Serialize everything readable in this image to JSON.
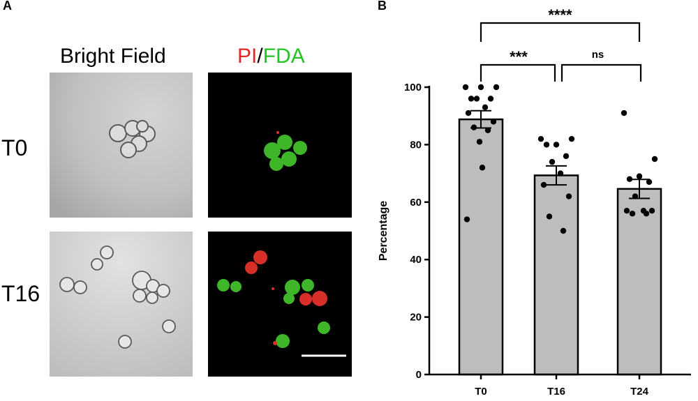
{
  "panel_a": {
    "letter": "A",
    "columns": {
      "bright_field": "Bright Field",
      "pi": "PI",
      "slash": "/",
      "fda": "FDA"
    },
    "rows": [
      "T0",
      "T16"
    ],
    "colors": {
      "pi": "#e8232a",
      "fda": "#22c322",
      "fluor_bg": "#000000"
    }
  },
  "panel_b": {
    "letter": "B"
  },
  "chart_data": {
    "type": "bar",
    "categories": [
      "T0",
      "T16",
      "T24"
    ],
    "values": [
      88.8,
      69.3,
      64.6
    ],
    "sem": [
      3.0,
      3.3,
      3.3
    ],
    "points": [
      [
        100,
        100,
        100,
        96,
        96,
        96,
        93,
        91,
        88,
        86,
        85,
        81,
        72,
        54
      ],
      [
        82,
        82,
        80,
        80,
        76,
        74,
        70,
        66,
        62,
        55,
        50
      ],
      [
        91,
        75,
        69,
        68,
        67,
        62,
        57,
        57,
        57,
        56,
        56
      ]
    ],
    "ylabel": "Percentage",
    "xlabel": "",
    "ylim": [
      0,
      100
    ],
    "yticks": [
      0,
      20,
      40,
      60,
      80,
      100
    ],
    "bar_color": "#bdbdbd",
    "significance": [
      {
        "from": "T0",
        "to": "T24",
        "label": "****"
      },
      {
        "from": "T0",
        "to": "T16",
        "label": "***"
      },
      {
        "from": "T16",
        "to": "T24",
        "label": "ns"
      }
    ]
  }
}
